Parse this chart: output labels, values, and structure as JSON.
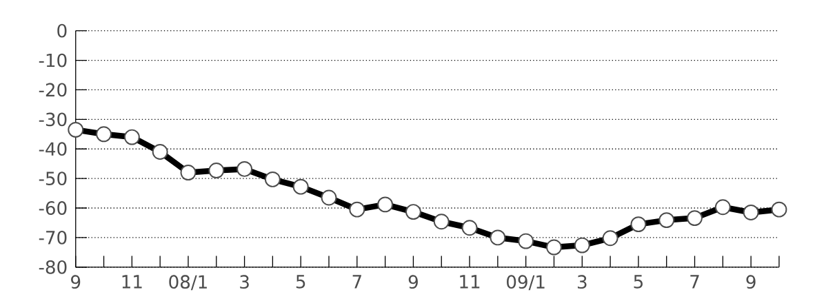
{
  "chart_data": {
    "type": "line",
    "categories": [
      "9",
      null,
      "11",
      null,
      "08/1",
      null,
      "3",
      null,
      "5",
      null,
      "7",
      null,
      "9",
      null,
      "11",
      null,
      "09/1",
      null,
      "3",
      null,
      "5",
      null,
      "7",
      null,
      "9",
      null
    ],
    "series": [
      {
        "color": "#000000",
        "values": [
          -33.5,
          -35,
          -36,
          -41,
          -48,
          -47.3,
          -46.8,
          -50.3,
          -52.8,
          -56.5,
          -60.5,
          -58.8,
          -61.3,
          -64.6,
          -66.7,
          -70,
          -71.2,
          -73.3,
          -72.6,
          -70.2,
          -65.5,
          -64.1,
          -63.4,
          -59.7,
          -61.5,
          -60.5
        ]
      }
    ],
    "ylim": [
      -80,
      0
    ],
    "yticks": [
      0,
      -10,
      -20,
      -30,
      -40,
      -50,
      -60,
      -70,
      -80
    ],
    "grid": "y",
    "marker": "circle",
    "line_style": "solid"
  }
}
